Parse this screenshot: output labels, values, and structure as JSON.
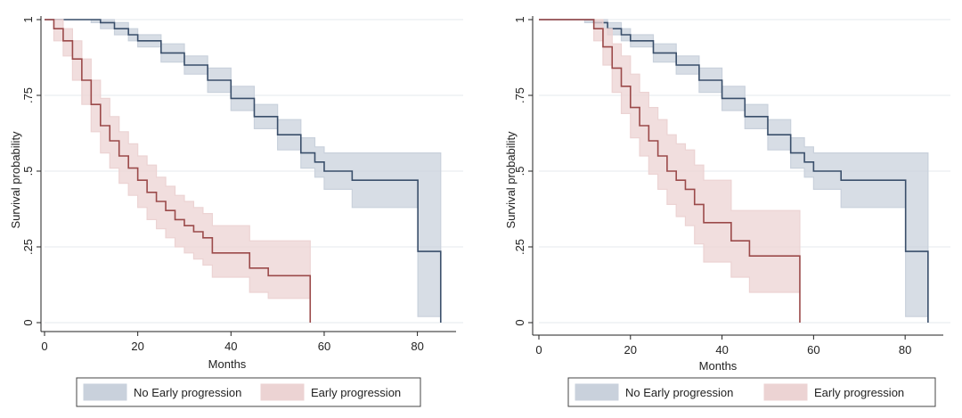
{
  "chart_data": [
    {
      "type": "line",
      "panel": "left",
      "title": "",
      "xlabel": "Months",
      "ylabel": "Survival probability",
      "xlim": [
        0,
        86
      ],
      "ylim": [
        0,
        1
      ],
      "xticks": [
        0,
        20,
        40,
        60,
        80
      ],
      "yticks": [
        0,
        0.25,
        0.5,
        0.75,
        1
      ],
      "ytick_labels": [
        "0",
        ".25",
        ".5",
        ".75",
        "1"
      ],
      "grid": true,
      "legend": {
        "position": "bottom",
        "entries": [
          "No Early progression",
          "Early progression"
        ]
      },
      "series": [
        {
          "name": "No Early progression",
          "line_color": "#3a4f6b",
          "band_color": "#c9d1dc",
          "x": [
            0,
            10,
            12,
            15,
            18,
            20,
            25,
            30,
            35,
            40,
            45,
            50,
            55,
            58,
            60,
            66,
            70,
            80,
            80.1,
            85
          ],
          "y": [
            1,
            1,
            0.99,
            0.97,
            0.95,
            0.93,
            0.89,
            0.85,
            0.8,
            0.74,
            0.68,
            0.62,
            0.56,
            0.53,
            0.5,
            0.47,
            0.47,
            0.47,
            0.235,
            0.235
          ],
          "lower": [
            1,
            0.99,
            0.97,
            0.95,
            0.93,
            0.91,
            0.86,
            0.82,
            0.76,
            0.7,
            0.64,
            0.57,
            0.51,
            0.48,
            0.44,
            0.38,
            0.38,
            0.38,
            0.02,
            0.02
          ],
          "upper": [
            1,
            1,
            1,
            0.99,
            0.97,
            0.95,
            0.92,
            0.88,
            0.84,
            0.78,
            0.72,
            0.67,
            0.61,
            0.58,
            0.56,
            0.56,
            0.56,
            0.56,
            0.56,
            0.56
          ],
          "end_drop_x": 85
        },
        {
          "name": "Early progression",
          "line_color": "#9b4a4a",
          "band_color": "#ecd3d3",
          "x": [
            0,
            2,
            4,
            6,
            8,
            10,
            12,
            14,
            16,
            18,
            20,
            22,
            24,
            26,
            28,
            30,
            32,
            34,
            36,
            40,
            44,
            46,
            48,
            50,
            54,
            57
          ],
          "y": [
            1,
            0.97,
            0.93,
            0.87,
            0.8,
            0.72,
            0.65,
            0.6,
            0.55,
            0.51,
            0.47,
            0.43,
            0.4,
            0.37,
            0.34,
            0.32,
            0.3,
            0.28,
            0.23,
            0.23,
            0.18,
            0.18,
            0.155,
            0.155,
            0.155,
            0.155
          ],
          "lower": [
            1,
            0.93,
            0.88,
            0.8,
            0.72,
            0.63,
            0.56,
            0.51,
            0.46,
            0.42,
            0.38,
            0.34,
            0.31,
            0.28,
            0.25,
            0.23,
            0.21,
            0.19,
            0.15,
            0.15,
            0.1,
            0.1,
            0.08,
            0.08,
            0.08,
            0.08
          ],
          "upper": [
            1,
            1,
            0.97,
            0.93,
            0.87,
            0.8,
            0.74,
            0.68,
            0.63,
            0.59,
            0.55,
            0.52,
            0.48,
            0.45,
            0.42,
            0.4,
            0.38,
            0.36,
            0.32,
            0.32,
            0.27,
            0.27,
            0.27,
            0.27,
            0.27,
            0.27
          ],
          "end_drop_x": 57
        }
      ]
    },
    {
      "type": "line",
      "panel": "right",
      "title": "",
      "xlabel": "Months",
      "ylabel": "Survival probability",
      "xlim": [
        0,
        86
      ],
      "ylim": [
        0,
        1
      ],
      "xticks": [
        0,
        20,
        40,
        60,
        80
      ],
      "yticks": [
        0,
        0.25,
        0.5,
        0.75,
        1
      ],
      "ytick_labels": [
        "0",
        ".25",
        ".5",
        ".75",
        "1"
      ],
      "grid": true,
      "legend": {
        "position": "bottom",
        "entries": [
          "No Early progression",
          "Early progression"
        ]
      },
      "series": [
        {
          "name": "No Early progression",
          "line_color": "#3a4f6b",
          "band_color": "#c9d1dc",
          "x": [
            0,
            10,
            12,
            15,
            18,
            20,
            25,
            30,
            35,
            40,
            45,
            50,
            55,
            58,
            60,
            66,
            70,
            80,
            80.1,
            85
          ],
          "y": [
            1,
            1,
            0.99,
            0.97,
            0.95,
            0.93,
            0.89,
            0.85,
            0.8,
            0.74,
            0.68,
            0.62,
            0.56,
            0.53,
            0.5,
            0.47,
            0.47,
            0.47,
            0.235,
            0.235
          ],
          "lower": [
            1,
            0.99,
            0.97,
            0.95,
            0.93,
            0.91,
            0.86,
            0.82,
            0.76,
            0.7,
            0.64,
            0.57,
            0.51,
            0.48,
            0.44,
            0.38,
            0.38,
            0.38,
            0.02,
            0.02
          ],
          "upper": [
            1,
            1,
            1,
            0.99,
            0.97,
            0.95,
            0.92,
            0.88,
            0.84,
            0.78,
            0.72,
            0.67,
            0.61,
            0.58,
            0.56,
            0.56,
            0.56,
            0.56,
            0.56,
            0.56
          ],
          "end_drop_x": 85
        },
        {
          "name": "Early progression",
          "line_color": "#9b4a4a",
          "band_color": "#ecd3d3",
          "x": [
            0,
            11,
            12,
            14,
            16,
            18,
            20,
            22,
            24,
            26,
            28,
            30,
            32,
            34,
            36,
            40,
            42,
            44,
            46,
            48,
            50,
            57
          ],
          "y": [
            1,
            1,
            0.97,
            0.91,
            0.84,
            0.78,
            0.71,
            0.65,
            0.6,
            0.55,
            0.5,
            0.47,
            0.44,
            0.39,
            0.33,
            0.33,
            0.27,
            0.27,
            0.22,
            0.22,
            0.22,
            0.22
          ],
          "lower": [
            1,
            1,
            0.93,
            0.85,
            0.76,
            0.69,
            0.61,
            0.55,
            0.49,
            0.44,
            0.39,
            0.35,
            0.32,
            0.26,
            0.2,
            0.2,
            0.15,
            0.15,
            0.1,
            0.1,
            0.1,
            0.1
          ],
          "upper": [
            1,
            1,
            1,
            0.97,
            0.92,
            0.88,
            0.82,
            0.76,
            0.71,
            0.67,
            0.62,
            0.59,
            0.57,
            0.52,
            0.47,
            0.47,
            0.37,
            0.37,
            0.37,
            0.37,
            0.37,
            0.37
          ],
          "end_drop_x": 57
        }
      ]
    }
  ]
}
